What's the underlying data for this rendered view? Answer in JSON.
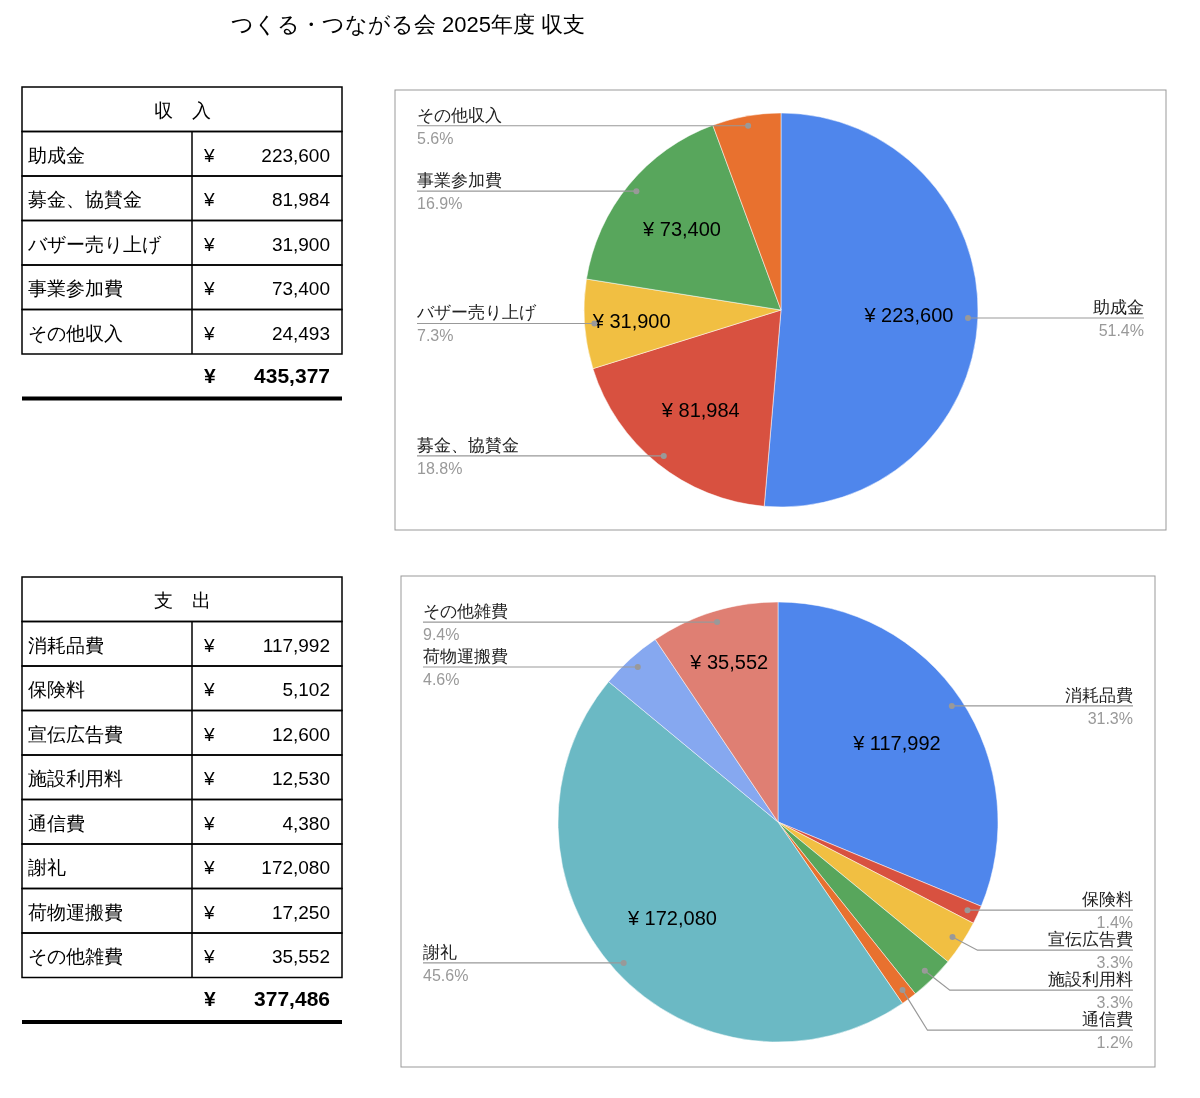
{
  "chart_data": [
    {
      "type": "pie",
      "title": "つくる・つながる会 2025年度 収支",
      "categories": [
        "助成金",
        "募金、協賛金",
        "バザー売り上げ",
        "事業参加費",
        "その他収入"
      ],
      "values": [
        223600,
        81984,
        31900,
        73400,
        24493
      ],
      "colors": [
        "#4f86ec",
        "#d85140",
        "#f1bf42",
        "#58a65c",
        "#e8712f"
      ],
      "value_labels": [
        "¥ 223,600",
        "¥ 81,984",
        "¥ 31,900",
        "¥ 73,400",
        "¥ 24,493"
      ],
      "annotations": [
        "収　入",
        "¥ 435,377",
        "51.4%",
        "18.8%",
        "7.3%",
        "16.9%",
        "5.6%"
      ]
    },
    {
      "type": "pie",
      "categories": [
        "消耗品費",
        "保険料",
        "宣伝広告費",
        "施設利用料",
        "通信費",
        "謝礼",
        "荷物運搬費",
        "その他雑費"
      ],
      "values": [
        117992,
        5102,
        12600,
        12530,
        4380,
        172080,
        17250,
        35552
      ],
      "colors": [
        "#4f86ec",
        "#d85140",
        "#f1bf42",
        "#58a65c",
        "#e8712f",
        "#6bb9c4",
        "#86a8f0",
        "#df7f73"
      ],
      "value_labels": [
        "¥ 117,992",
        "¥ 5,102",
        "¥ 12,600",
        "¥ 12,530",
        "¥ 4,380",
        "¥ 172,080",
        "¥ 17,250",
        "¥ 35,552"
      ],
      "annotations": [
        "支　出",
        "¥ 377,486",
        "31.3%",
        "1.4%",
        "3.3%",
        "3.3%",
        "1.2%",
        "45.6%",
        "4.6%",
        "9.4%"
      ]
    }
  ]
}
